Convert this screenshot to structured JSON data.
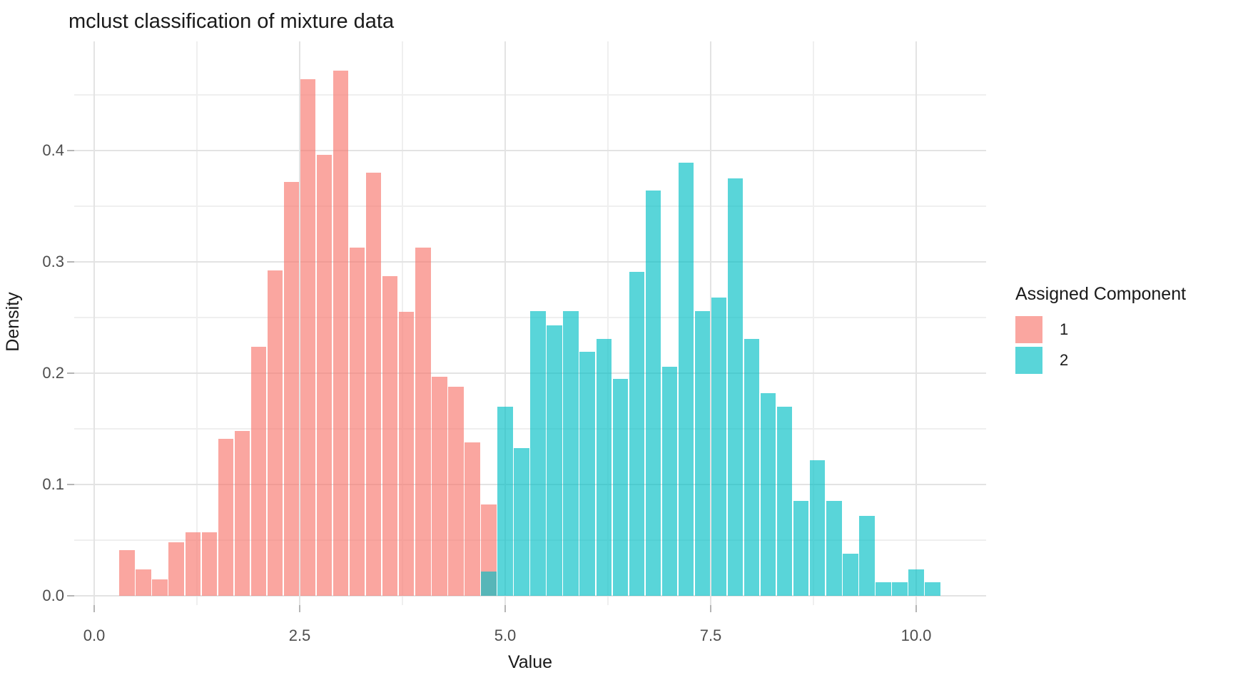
{
  "title": "mclust classification of mixture data",
  "x_axis": {
    "label": "Value",
    "tick_labels": [
      "0.0",
      "2.5",
      "5.0",
      "7.5",
      "10.0"
    ],
    "tick_values": [
      0,
      2.5,
      5,
      7.5,
      10
    ],
    "minor_values": [
      1.25,
      3.75,
      6.25,
      8.75
    ]
  },
  "y_axis": {
    "label": "Density",
    "tick_labels": [
      "0.0",
      "0.1",
      "0.2",
      "0.3",
      "0.4"
    ],
    "tick_values": [
      0,
      0.1,
      0.2,
      0.3,
      0.4
    ],
    "minor_values": [
      0.05,
      0.15,
      0.25,
      0.35,
      0.45
    ]
  },
  "legend": {
    "title": "Assigned Component",
    "items": [
      {
        "label": "1",
        "color": "rgba(248,118,109,0.65)"
      },
      {
        "label": "2",
        "color": "rgba(0,191,196,0.65)"
      }
    ]
  },
  "colors": {
    "background": "#FFFFFF",
    "grid_major": "#E3E3E3",
    "grid_minor": "#EFEFEF",
    "tick": "#B5B5B5",
    "axis_text": "#4D4D4D",
    "text": "#1A1A1A",
    "component1": "rgba(248,118,109,0.65)",
    "component2": "rgba(0,191,196,0.65)"
  },
  "chart_data": {
    "type": "bar",
    "subtype": "histogram",
    "title": "mclust classification of mixture data",
    "xlabel": "Value",
    "ylabel": "Density",
    "xlim": [
      -0.25,
      10.85
    ],
    "ylim": [
      -0.025,
      0.518
    ],
    "grid": true,
    "legend_position": "right",
    "binwidth": 0.2,
    "series": [
      {
        "name": "1",
        "color": "rgba(248,118,109,0.65)",
        "bin_start": 0.3,
        "densities": [
          0.041,
          0.024,
          0.015,
          0.048,
          0.057,
          0.057,
          0.141,
          0.148,
          0.224,
          0.292,
          0.372,
          0.464,
          0.396,
          0.472,
          0.313,
          0.38,
          0.287,
          0.255,
          0.313,
          0.197,
          0.188,
          0.138,
          0.082
        ]
      },
      {
        "name": "2",
        "color": "rgba(0,191,196,0.65)",
        "bin_start": 4.7,
        "densities": [
          0.022,
          0.17,
          0.133,
          0.256,
          0.243,
          0.256,
          0.219,
          0.231,
          0.195,
          0.291,
          0.364,
          0.206,
          0.389,
          0.256,
          0.268,
          0.375,
          0.231,
          0.182,
          0.17,
          0.085,
          0.122,
          0.085,
          0.038,
          0.072,
          0.012,
          0.012,
          0.024,
          0.012
        ]
      }
    ],
    "overlap_note": "bin starting at 4.7 contains both components; component 2 drawn over component 1 appears dark teal"
  }
}
